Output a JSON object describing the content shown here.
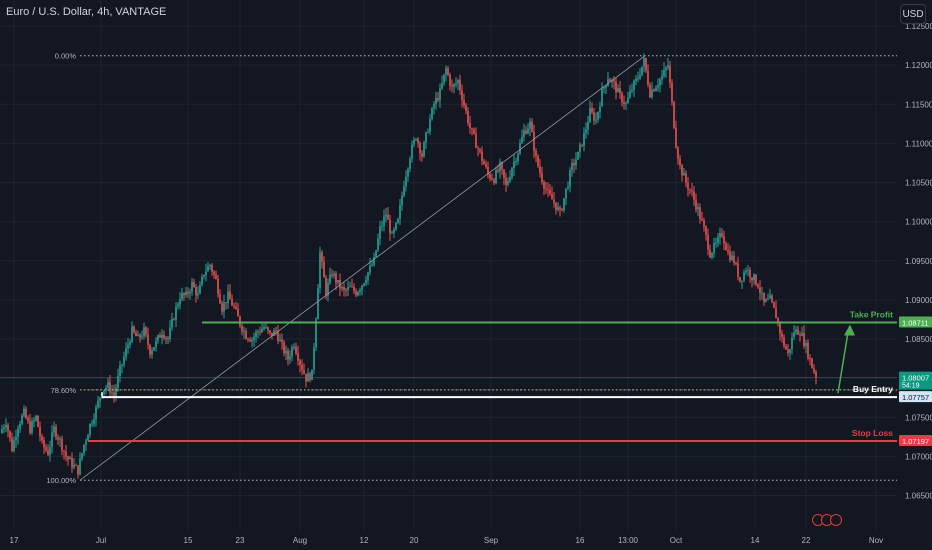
{
  "header": {
    "symbol_title": "Euro / U.S. Dollar, 4h, VANTAGE",
    "currency_button": "USD"
  },
  "colors": {
    "background": "#131722",
    "up_candle": "#26a69a",
    "down_candle": "#ef5350",
    "take_profit": "#4caf50",
    "buy_entry": "#ffffff",
    "stop_loss": "#f23645",
    "current_price": "#089981",
    "fib_level": "#b2b5be",
    "axis_text": "#b2b5be"
  },
  "chart_data": {
    "type": "candlestick",
    "title": "Euro / U.S. Dollar, 4h, VANTAGE",
    "ylim": [
      1.0615,
      1.1285
    ],
    "y_ticks": [
      "1.12500",
      "1.12000",
      "1.11500",
      "1.11000",
      "1.10500",
      "1.10000",
      "1.09500",
      "1.09000",
      "1.08500",
      "1.08000",
      "1.07500",
      "1.07000",
      "1.06500"
    ],
    "x_ticks": [
      "17",
      "Jul",
      "15",
      "23",
      "Aug",
      "12",
      "20",
      "Sep",
      "16",
      "13:00",
      "Oct",
      "14",
      "22",
      "Nov"
    ],
    "price_path": [
      [
        0,
        1.073
      ],
      [
        6,
        1.0745
      ],
      [
        12,
        1.071
      ],
      [
        18,
        1.074
      ],
      [
        24,
        1.0755
      ],
      [
        30,
        1.0735
      ],
      [
        36,
        1.075
      ],
      [
        42,
        1.0715
      ],
      [
        48,
        1.0705
      ],
      [
        54,
        1.0735
      ],
      [
        60,
        1.072
      ],
      [
        66,
        1.07
      ],
      [
        72,
        1.069
      ],
      [
        78,
        1.0682
      ],
      [
        84,
        1.0715
      ],
      [
        90,
        1.074
      ],
      [
        96,
        1.076
      ],
      [
        102,
        1.0785
      ],
      [
        108,
        1.079
      ],
      [
        114,
        1.0778
      ],
      [
        120,
        1.081
      ],
      [
        126,
        1.0835
      ],
      [
        132,
        1.086
      ],
      [
        138,
        1.085
      ],
      [
        144,
        1.086
      ],
      [
        150,
        1.0835
      ],
      [
        156,
        1.0845
      ],
      [
        162,
        1.086
      ],
      [
        168,
        1.085
      ],
      [
        174,
        1.088
      ],
      [
        180,
        1.0905
      ],
      [
        186,
        1.0905
      ],
      [
        192,
        1.092
      ],
      [
        198,
        1.0905
      ],
      [
        204,
        1.0935
      ],
      [
        210,
        1.0945
      ],
      [
        216,
        1.0925
      ],
      [
        222,
        1.089
      ],
      [
        228,
        1.0905
      ],
      [
        234,
        1.089
      ],
      [
        240,
        1.087
      ],
      [
        246,
        1.0855
      ],
      [
        252,
        1.085
      ],
      [
        258,
        1.086
      ],
      [
        264,
        1.0865
      ],
      [
        270,
        1.0855
      ],
      [
        276,
        1.086
      ],
      [
        282,
        1.084
      ],
      [
        288,
        1.0825
      ],
      [
        294,
        1.0845
      ],
      [
        300,
        1.082
      ],
      [
        306,
        1.08
      ],
      [
        312,
        1.0805
      ],
      [
        316,
        1.088
      ],
      [
        320,
        1.096
      ],
      [
        326,
        1.091
      ],
      [
        332,
        1.0935
      ],
      [
        338,
        1.092
      ],
      [
        344,
        1.091
      ],
      [
        350,
        1.0915
      ],
      [
        356,
        1.091
      ],
      [
        362,
        1.092
      ],
      [
        368,
        1.0935
      ],
      [
        374,
        1.095
      ],
      [
        380,
        1.099
      ],
      [
        386,
        1.101
      ],
      [
        392,
        1.098
      ],
      [
        398,
        1.1
      ],
      [
        404,
        1.105
      ],
      [
        410,
        1.1085
      ],
      [
        416,
        1.111
      ],
      [
        422,
        1.1085
      ],
      [
        428,
        1.112
      ],
      [
        434,
        1.115
      ],
      [
        440,
        1.1165
      ],
      [
        446,
        1.1195
      ],
      [
        452,
        1.117
      ],
      [
        458,
        1.118
      ],
      [
        464,
        1.115
      ],
      [
        470,
        1.112
      ],
      [
        476,
        1.11
      ],
      [
        482,
        1.108
      ],
      [
        488,
        1.106
      ],
      [
        494,
        1.1055
      ],
      [
        500,
        1.107
      ],
      [
        506,
        1.1045
      ],
      [
        512,
        1.107
      ],
      [
        518,
        1.109
      ],
      [
        524,
        1.1115
      ],
      [
        530,
        1.1125
      ],
      [
        536,
        1.108
      ],
      [
        542,
        1.1055
      ],
      [
        548,
        1.1035
      ],
      [
        554,
        1.1025
      ],
      [
        560,
        1.101
      ],
      [
        566,
        1.104
      ],
      [
        572,
        1.107
      ],
      [
        578,
        1.1085
      ],
      [
        584,
        1.111
      ],
      [
        590,
        1.114
      ],
      [
        596,
        1.113
      ],
      [
        602,
        1.1165
      ],
      [
        608,
        1.1185
      ],
      [
        614,
        1.1175
      ],
      [
        620,
        1.116
      ],
      [
        626,
        1.115
      ],
      [
        632,
        1.117
      ],
      [
        638,
        1.1185
      ],
      [
        644,
        1.1205
      ],
      [
        650,
        1.1165
      ],
      [
        656,
        1.1175
      ],
      [
        662,
        1.1185
      ],
      [
        668,
        1.12
      ],
      [
        672,
        1.115
      ],
      [
        676,
        1.11
      ],
      [
        680,
        1.107
      ],
      [
        686,
        1.105
      ],
      [
        692,
        1.1035
      ],
      [
        698,
        1.1015
      ],
      [
        704,
        1.099
      ],
      [
        710,
        1.096
      ],
      [
        716,
        1.097
      ],
      [
        722,
        1.0985
      ],
      [
        728,
        1.096
      ],
      [
        734,
        1.095
      ],
      [
        740,
        1.0925
      ],
      [
        746,
        1.094
      ],
      [
        752,
        1.093
      ],
      [
        758,
        1.092
      ],
      [
        764,
        1.0895
      ],
      [
        770,
        1.09
      ],
      [
        776,
        1.088
      ],
      [
        782,
        1.085
      ],
      [
        788,
        1.083
      ],
      [
        794,
        1.086
      ],
      [
        800,
        1.086
      ],
      [
        806,
        1.084
      ],
      [
        812,
        1.0815
      ],
      [
        817,
        1.0801
      ]
    ],
    "fib_levels": [
      {
        "label": "0.00%",
        "price": 1.1212
      },
      {
        "label": "78.60%",
        "price": 1.0785
      },
      {
        "label": "100.00%",
        "price": 1.06695
      }
    ],
    "trendline": {
      "from": [
        80,
        1.06695
      ],
      "to": [
        645,
        1.1212
      ]
    },
    "levels": [
      {
        "name": "take_profit",
        "label": "Take Profit",
        "price_label": "1.08711",
        "price": 1.08711,
        "color": "#4caf50"
      },
      {
        "name": "buy_entry",
        "label": "Buy Entry",
        "price_label": "1.07757",
        "price": 1.07757,
        "color": "#ffffff"
      },
      {
        "name": "stop_loss",
        "label": "Stop Loss",
        "price_label": "1.07197",
        "price": 1.07197,
        "color": "#f23645"
      }
    ],
    "current_price": {
      "price": 1.08007,
      "price_label": "1.08007",
      "countdown": "54:19"
    }
  }
}
